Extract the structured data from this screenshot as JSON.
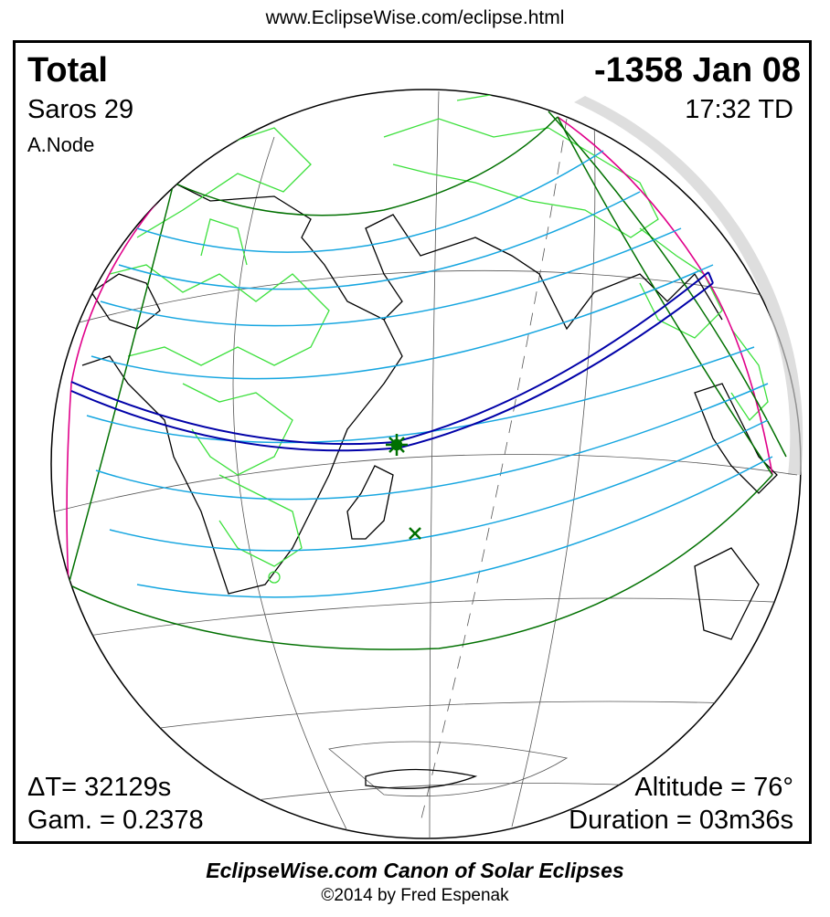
{
  "header": {
    "url": "www.EclipseWise.com/eclipse.html"
  },
  "eclipse": {
    "type": "Total",
    "date": "-1358 Jan 08",
    "saros": "Saros  29",
    "time": "17:32 TD",
    "node": "A.Node",
    "delta_t": "ΔT=  32129s",
    "gamma": "Gam. = 0.2378",
    "altitude": "Altitude = 76°",
    "duration": "Duration = 03m36s"
  },
  "footer": {
    "canon": "EclipseWise.com Canon of Solar Eclipses",
    "copyright": "©2014 by Fred Espenak"
  },
  "colors": {
    "totality_path": "#0000a8",
    "penumbra_limits": "#007000",
    "eclipse_curves": "#16a6e0",
    "rise_set_curves": "#e0008a",
    "borders": "#3ce03c",
    "coastlines": "#000000"
  }
}
